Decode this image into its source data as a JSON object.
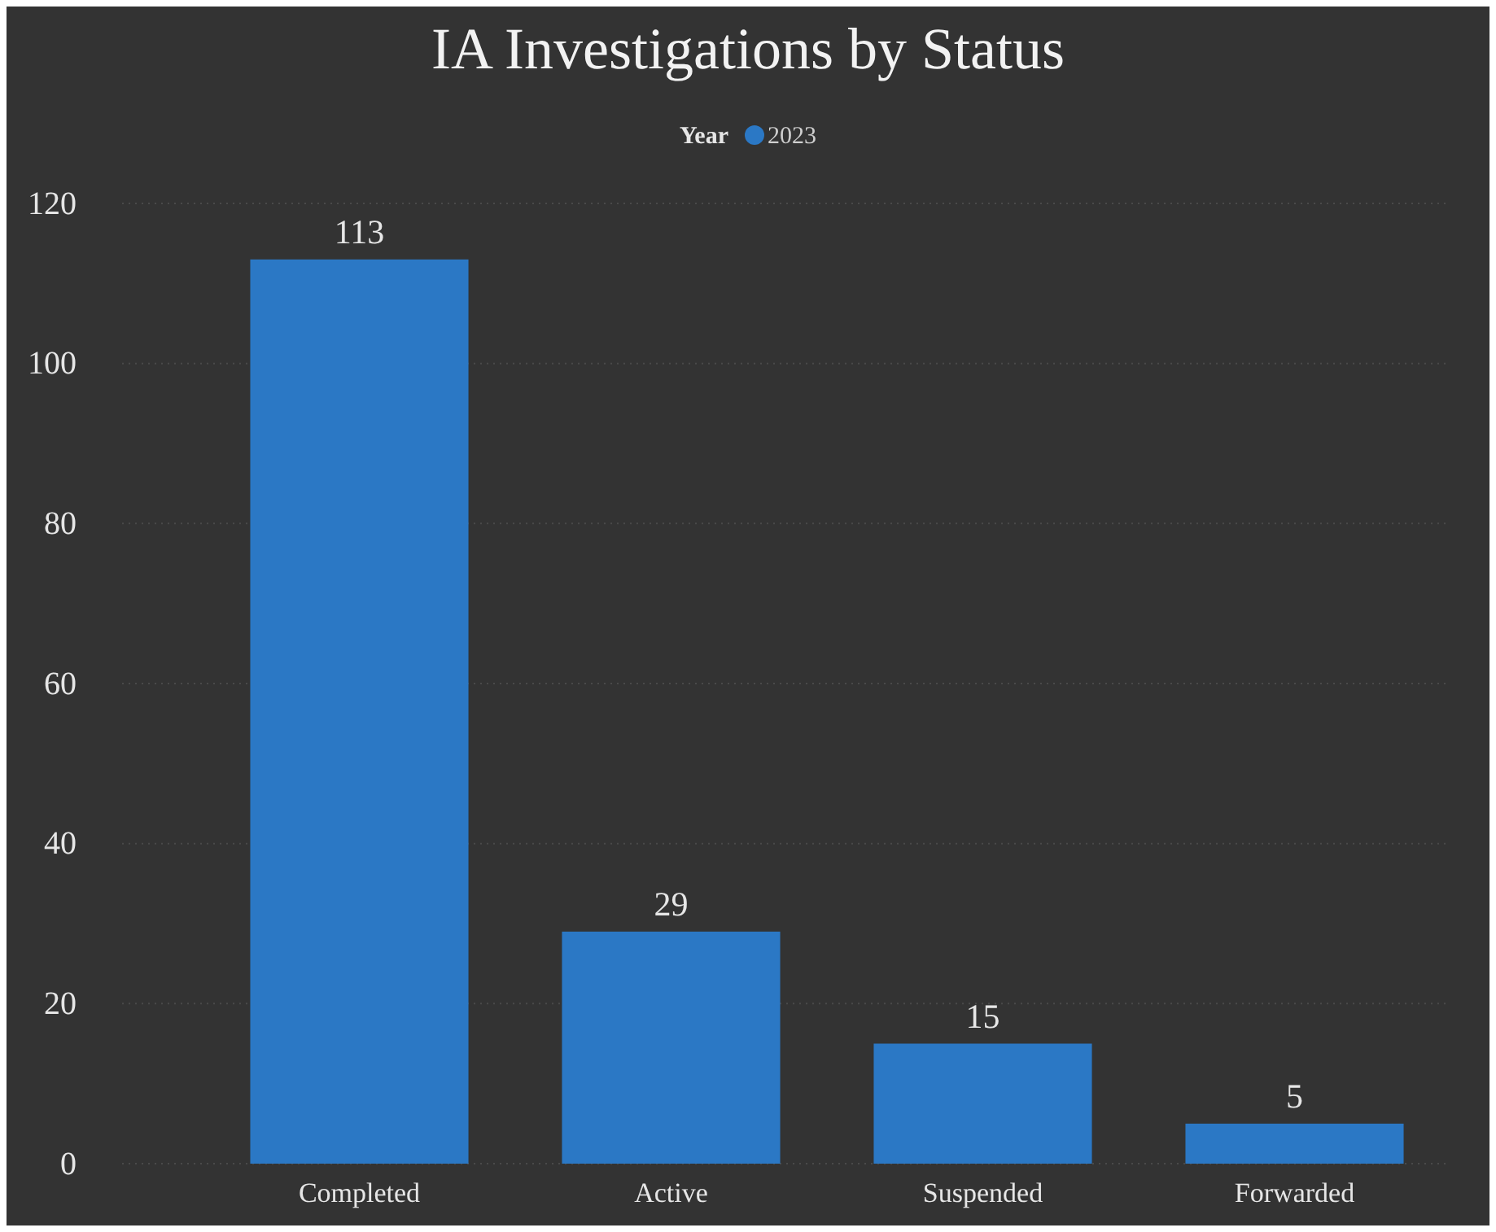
{
  "chart_data": {
    "type": "bar",
    "title": "IA Investigations by Status",
    "legend_title": "Year",
    "categories": [
      "Completed",
      "Active",
      "Suspended",
      "Forwarded"
    ],
    "series": [
      {
        "name": "2023",
        "color": "#2b78c5",
        "values": [
          113,
          29,
          15,
          5
        ]
      }
    ],
    "ylim": [
      0,
      120
    ],
    "yticks": [
      0,
      20,
      40,
      60,
      80,
      100,
      120
    ],
    "grid": "y",
    "legend": "top",
    "data_labels": true
  }
}
